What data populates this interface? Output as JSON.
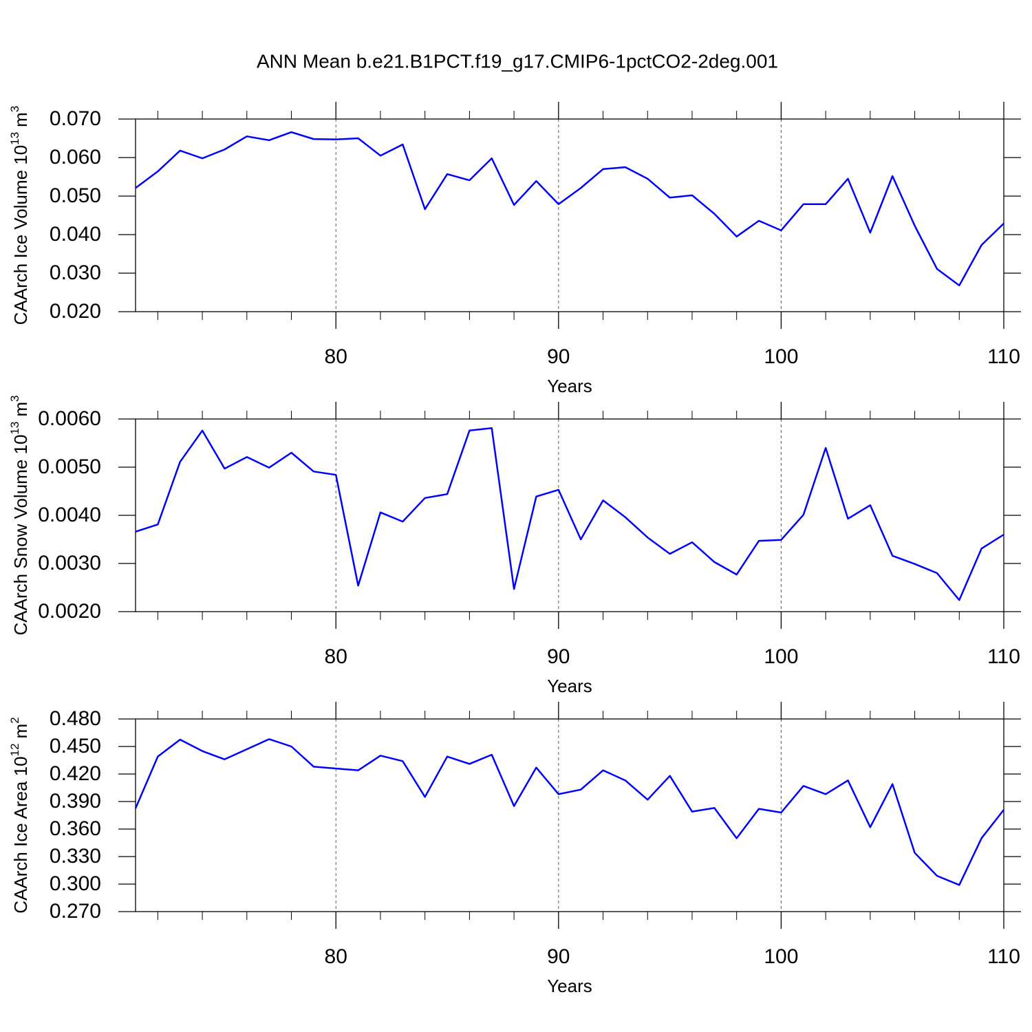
{
  "title": "ANN Mean b.e21.B1PCT.f19_g17.CMIP6-1pctCO2-2deg.001",
  "chart_data": [
    {
      "type": "line",
      "xlabel": "Years",
      "ylabel": [
        "CAArch Ice Volume 10",
        "13",
        "m",
        "3"
      ],
      "color": "#0000ff",
      "xgrid": true,
      "xlim": [
        71,
        110
      ],
      "xticks": [
        80,
        90,
        100,
        110
      ],
      "xminorticks": [
        72,
        74,
        76,
        78,
        82,
        84,
        86,
        88,
        92,
        94,
        96,
        98,
        102,
        104,
        106,
        108
      ],
      "ylim": [
        0.02,
        0.07
      ],
      "yticks": [
        {
          "value": 0.02,
          "label": "0.020"
        },
        {
          "value": 0.03,
          "label": "0.030"
        },
        {
          "value": 0.04,
          "label": "0.040"
        },
        {
          "value": 0.05,
          "label": "0.050"
        },
        {
          "value": 0.06,
          "label": "0.060"
        },
        {
          "value": 0.07,
          "label": "0.070"
        }
      ],
      "x": [
        71,
        72,
        73,
        74,
        75,
        76,
        77,
        78,
        79,
        80,
        81,
        82,
        83,
        84,
        85,
        86,
        87,
        88,
        89,
        90,
        91,
        92,
        93,
        94,
        95,
        96,
        97,
        98,
        99,
        100,
        101,
        102,
        103,
        104,
        105,
        106,
        107,
        108,
        109,
        110
      ],
      "values": [
        0.0521,
        0.0564,
        0.0618,
        0.0598,
        0.0621,
        0.0655,
        0.0645,
        0.0666,
        0.0648,
        0.0647,
        0.065,
        0.0605,
        0.0634,
        0.0466,
        0.0557,
        0.0541,
        0.0598,
        0.0477,
        0.0539,
        0.0479,
        0.0521,
        0.057,
        0.0575,
        0.0545,
        0.0496,
        0.0502,
        0.0454,
        0.0395,
        0.0436,
        0.0411,
        0.0479,
        0.0479,
        0.0545,
        0.0405,
        0.0552,
        0.0423,
        0.0311,
        0.0268,
        0.0373,
        0.0429
      ]
    },
    {
      "type": "line",
      "xlabel": "Years",
      "ylabel": [
        "CAArch Snow Volume 10",
        "13",
        "m",
        "3"
      ],
      "color": "#0000ff",
      "xgrid": true,
      "xlim": [
        71,
        110
      ],
      "xticks": [
        80,
        90,
        100,
        110
      ],
      "xminorticks": [
        72,
        74,
        76,
        78,
        82,
        84,
        86,
        88,
        92,
        94,
        96,
        98,
        102,
        104,
        106,
        108
      ],
      "ylim": [
        0.002,
        0.006
      ],
      "yticks": [
        {
          "value": 0.002,
          "label": "0.0020"
        },
        {
          "value": 0.003,
          "label": "0.0030"
        },
        {
          "value": 0.004,
          "label": "0.0040"
        },
        {
          "value": 0.005,
          "label": "0.0050"
        },
        {
          "value": 0.006,
          "label": "0.0060"
        }
      ],
      "x": [
        71,
        72,
        73,
        74,
        75,
        76,
        77,
        78,
        79,
        80,
        81,
        82,
        83,
        84,
        85,
        86,
        87,
        88,
        89,
        90,
        91,
        92,
        93,
        94,
        95,
        96,
        97,
        98,
        99,
        100,
        101,
        102,
        103,
        104,
        105,
        106,
        107,
        108,
        109,
        110
      ],
      "values": [
        0.00366,
        0.00381,
        0.00511,
        0.00576,
        0.00497,
        0.00521,
        0.00499,
        0.0053,
        0.00491,
        0.00484,
        0.00254,
        0.00406,
        0.00387,
        0.00436,
        0.00444,
        0.00576,
        0.00581,
        0.00247,
        0.00439,
        0.00453,
        0.0035,
        0.00431,
        0.00396,
        0.00354,
        0.0032,
        0.00344,
        0.00303,
        0.00277,
        0.00347,
        0.00349,
        0.00401,
        0.0054,
        0.00393,
        0.00421,
        0.00316,
        0.00299,
        0.0028,
        0.00224,
        0.00331,
        0.0036
      ]
    },
    {
      "type": "line",
      "xlabel": "Years",
      "ylabel": [
        "CAArch Ice Area 10",
        "12",
        "m",
        "2"
      ],
      "color": "#0000ff",
      "xgrid": true,
      "xlim": [
        71,
        110
      ],
      "xticks": [
        80,
        90,
        100,
        110
      ],
      "xminorticks": [
        72,
        74,
        76,
        78,
        82,
        84,
        86,
        88,
        92,
        94,
        96,
        98,
        102,
        104,
        106,
        108
      ],
      "ylim": [
        0.27,
        0.48
      ],
      "yticks": [
        {
          "value": 0.27,
          "label": "0.270"
        },
        {
          "value": 0.3,
          "label": "0.300"
        },
        {
          "value": 0.33,
          "label": "0.330"
        },
        {
          "value": 0.36,
          "label": "0.360"
        },
        {
          "value": 0.39,
          "label": "0.390"
        },
        {
          "value": 0.42,
          "label": "0.420"
        },
        {
          "value": 0.45,
          "label": "0.450"
        },
        {
          "value": 0.48,
          "label": "0.480"
        }
      ],
      "x": [
        71,
        72,
        73,
        74,
        75,
        76,
        77,
        78,
        79,
        80,
        81,
        82,
        83,
        84,
        85,
        86,
        87,
        88,
        89,
        90,
        91,
        92,
        93,
        94,
        95,
        96,
        97,
        98,
        99,
        100,
        101,
        102,
        103,
        104,
        105,
        106,
        107,
        108,
        109,
        110
      ],
      "values": [
        0.3825,
        0.439,
        0.4575,
        0.445,
        0.436,
        0.447,
        0.458,
        0.45,
        0.428,
        0.426,
        0.424,
        0.44,
        0.434,
        0.395,
        0.439,
        0.431,
        0.441,
        0.385,
        0.427,
        0.398,
        0.403,
        0.424,
        0.413,
        0.392,
        0.418,
        0.379,
        0.383,
        0.35,
        0.382,
        0.378,
        0.407,
        0.398,
        0.413,
        0.362,
        0.409,
        0.334,
        0.309,
        0.299,
        0.35,
        0.381
      ]
    }
  ]
}
